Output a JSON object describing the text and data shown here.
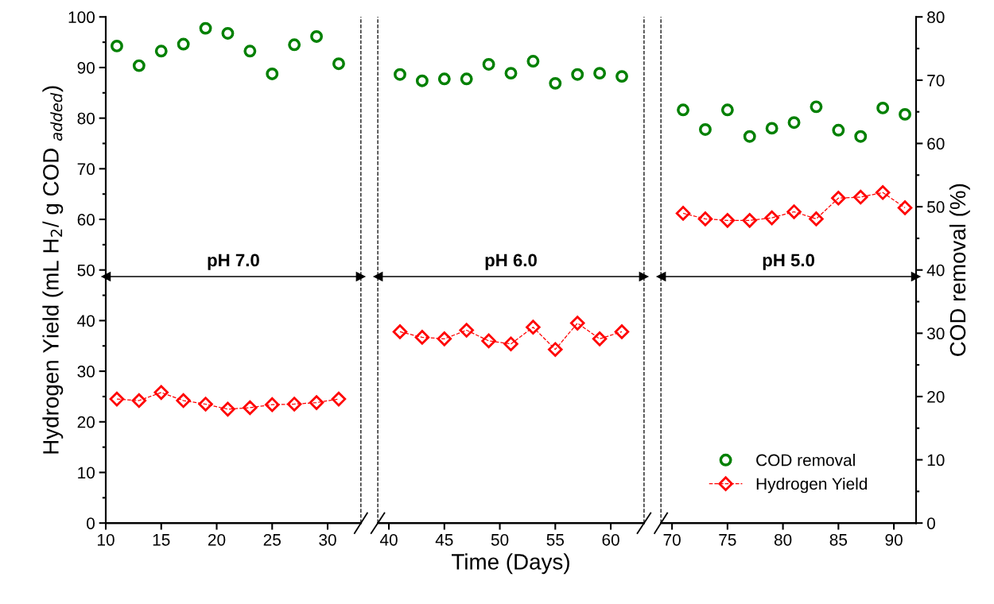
{
  "chart_data": [
    {
      "type": "line",
      "xlim": [
        10,
        33
      ],
      "xticks": [
        10,
        15,
        20,
        25,
        30
      ],
      "ylim": [
        0,
        100
      ],
      "yticks": [
        0,
        10,
        20,
        30,
        40,
        50,
        60,
        70,
        80,
        90,
        100
      ],
      "y2lim": [
        0,
        80
      ],
      "tick_labels": "xy",
      "ylabel": "Hydrogen Yield (mL H$_{2}$/ g COD $_{added}$)",
      "ref_lines": [
        {
          "axis": "x",
          "value": 33,
          "line_style": "dashed"
        },
        {
          "axis": "y",
          "value": 48.7,
          "label": "pH 7.0"
        }
      ],
      "series": [
        {
          "type": "scatter",
          "axis": "y2",
          "color": "#008000",
          "marker": "circle",
          "x": [
            11,
            13,
            15,
            17,
            19,
            21,
            23,
            25,
            27,
            29,
            31
          ],
          "values": [
            75.4,
            72.3,
            74.6,
            75.7,
            78.2,
            77.4,
            74.6,
            71.0,
            75.6,
            76.9,
            72.6
          ]
        },
        {
          "color": "#ff0000",
          "marker": "diamond",
          "line_style": "dashed",
          "x": [
            11,
            13,
            15,
            17,
            19,
            21,
            23,
            25,
            27,
            29,
            31
          ],
          "values": [
            24.5,
            24.2,
            25.8,
            24.2,
            23.5,
            22.5,
            22.8,
            23.4,
            23.5,
            23.8,
            24.5
          ]
        }
      ]
    },
    {
      "type": "line",
      "xlim": [
        39,
        63
      ],
      "xticks": [
        40,
        45,
        50,
        55,
        60
      ],
      "ylim": [
        0,
        100
      ],
      "y2lim": [
        0,
        80
      ],
      "tick_labels": "x",
      "xlabel": "Time (Days)",
      "ref_lines": [
        {
          "axis": "x",
          "value": 39,
          "line_style": "dashed"
        },
        {
          "axis": "x",
          "value": 63,
          "line_style": "dashed"
        },
        {
          "axis": "y",
          "value": 48.7,
          "label": "pH 6.0"
        }
      ],
      "series": [
        {
          "type": "scatter",
          "axis": "y2",
          "color": "#008000",
          "marker": "circle",
          "x": [
            41,
            43,
            45,
            47,
            49,
            51,
            53,
            55,
            57,
            59,
            61
          ],
          "values": [
            70.9,
            69.9,
            70.2,
            70.2,
            72.5,
            71.1,
            73.0,
            69.5,
            70.9,
            71.1,
            70.6
          ]
        },
        {
          "color": "#ff0000",
          "marker": "diamond",
          "line_style": "dashed",
          "x": [
            41,
            43,
            45,
            47,
            49,
            51,
            53,
            55,
            57,
            59,
            61
          ],
          "values": [
            37.8,
            36.7,
            36.4,
            38.1,
            36.0,
            35.4,
            38.7,
            34.3,
            39.5,
            36.4,
            37.8
          ]
        }
      ]
    },
    {
      "type": "line",
      "xlim": [
        69,
        92
      ],
      "xticks": [
        70,
        75,
        80,
        85,
        90
      ],
      "ylim": [
        0,
        100
      ],
      "y2lim": [
        0,
        80
      ],
      "y2ticks": [
        0,
        10,
        20,
        30,
        40,
        50,
        60,
        70,
        80
      ],
      "tick_labels": "xy2",
      "y2label": "COD removal (%)",
      "legend": "bottom",
      "ref_lines": [
        {
          "axis": "x",
          "value": 69,
          "line_style": "dashed"
        },
        {
          "axis": "y",
          "value": 48.7,
          "label": "pH 5.0"
        }
      ],
      "series": [
        {
          "name": "COD removal",
          "type": "scatter",
          "axis": "y2",
          "color": "#008000",
          "marker": "circle",
          "x": [
            71,
            73,
            75,
            77,
            79,
            81,
            83,
            85,
            87,
            89,
            91
          ],
          "values": [
            65.3,
            62.2,
            65.3,
            61.1,
            62.4,
            63.3,
            65.8,
            62.1,
            61.1,
            65.6,
            64.6
          ]
        },
        {
          "name": "Hydrogen Yield",
          "color": "#ff0000",
          "marker": "diamond",
          "line_style": "dashed",
          "x": [
            71,
            73,
            75,
            77,
            79,
            81,
            83,
            85,
            87,
            89,
            91
          ],
          "values": [
            61.2,
            60.1,
            59.8,
            59.8,
            60.3,
            61.5,
            60.1,
            64.2,
            64.4,
            65.3,
            62.3
          ]
        }
      ]
    }
  ]
}
